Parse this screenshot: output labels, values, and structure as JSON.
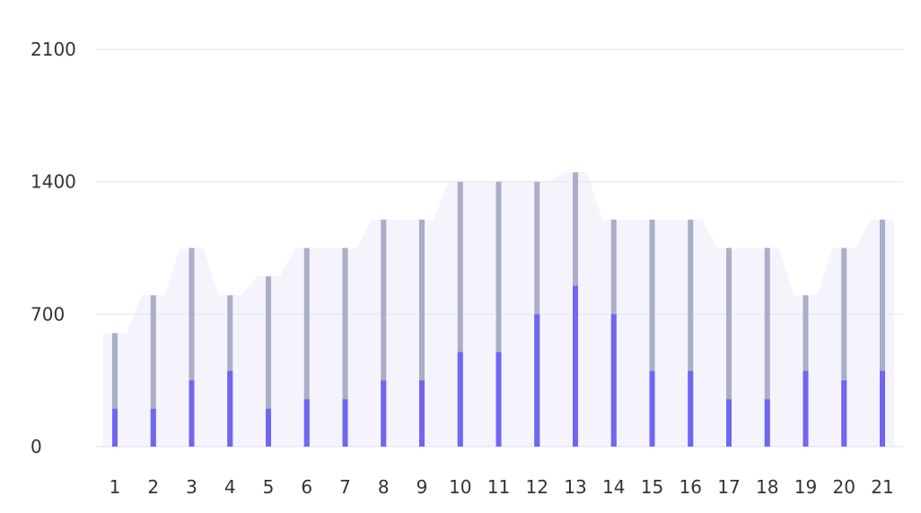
{
  "chart_data": {
    "type": "bar",
    "title": "",
    "xlabel": "",
    "ylabel": "",
    "ylim": [
      0,
      2100
    ],
    "yticks": [
      0,
      700,
      1400,
      2100
    ],
    "grid": true,
    "legend": "none",
    "categories": [
      "1",
      "2",
      "3",
      "4",
      "5",
      "6",
      "7",
      "8",
      "9",
      "10",
      "11",
      "12",
      "13",
      "14",
      "15",
      "16",
      "17",
      "18",
      "19",
      "20",
      "21"
    ],
    "series": [
      {
        "values": [
          200,
          200,
          350,
          400,
          200,
          250,
          250,
          350,
          350,
          500,
          500,
          700,
          850,
          700,
          400,
          400,
          250,
          250,
          400,
          350,
          400
        ]
      },
      {
        "values": [
          600,
          800,
          1050,
          800,
          900,
          1050,
          1050,
          1200,
          1200,
          1400,
          1400,
          1400,
          1450,
          1200,
          1200,
          1200,
          1050,
          1050,
          800,
          1050,
          1200
        ]
      }
    ],
    "colors": {
      "foreground_bar": "#7066f0",
      "background_bar": "#aaaec8",
      "shadow_area": "#f3f1fc",
      "gridline": "#e9eaf2",
      "label": "#333333"
    }
  }
}
